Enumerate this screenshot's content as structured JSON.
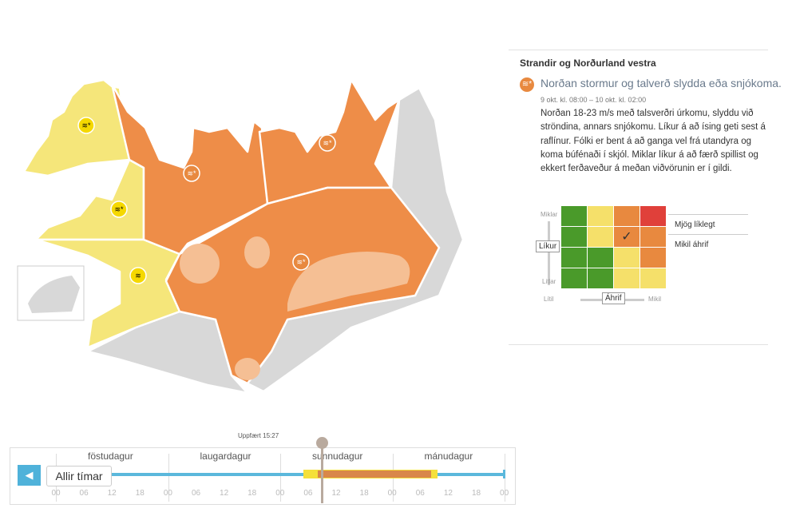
{
  "panel": {
    "region": "Strandir og Norðurland vestra",
    "icon": "wind-snow-icon",
    "headline": "Norðan stormur og talverð slydda eða snjókoma.",
    "time": "9 okt. kl. 08:00 – 10 okt. kl. 02:00",
    "text": "Norðan 18-23 m/s með talsverðri úrkomu, slyddu við ströndina, annars snjókomu. Líkur á að ísing geti sest á raflínur. Fólki er bent á að ganga vel frá utandyra og koma búfénaði í skjól. Miklar líkur á að færð spillist og ekkert ferðaveður á meðan viðvörunin er í gildi."
  },
  "matrix": {
    "likelihood_high": "Miklar",
    "likelihood_low": "Litlar",
    "likelihood_label": "Líkur",
    "impact_low": "Lítil",
    "impact_high": "Mikil",
    "impact_label": "Áhrif",
    "likelihood_value": "Mjög líklegt",
    "impact_value": "Mikil áhrif",
    "check": "✓",
    "colors": [
      [
        "#4a9a2a",
        "#f5e06a",
        "#e8893f",
        "#e0403a"
      ],
      [
        "#4a9a2a",
        "#f5e06a",
        "#e8893f",
        "#e8893f"
      ],
      [
        "#4a9a2a",
        "#4a9a2a",
        "#f5e06a",
        "#e8893f"
      ],
      [
        "#4a9a2a",
        "#4a9a2a",
        "#f5e06a",
        "#f5e06a"
      ]
    ],
    "selected": [
      1,
      2
    ]
  },
  "timeline": {
    "updated": "Uppfært 15:27",
    "all_times": "Allir tímar",
    "days": [
      "föstudagur",
      "laugardagur",
      "sunnudagur",
      "mánudagur"
    ],
    "hours": [
      "00",
      "06",
      "12",
      "18",
      "00",
      "06",
      "12",
      "18",
      "00",
      "06",
      "12",
      "18",
      "00",
      "06",
      "12",
      "18",
      "00"
    ],
    "accent": "#5bb8dc",
    "yellow_warning": "#f5e03a",
    "orange_warning": "#d9874a"
  },
  "map": {
    "colors": {
      "yellow": "#f5e67a",
      "orange": "#ee8d48",
      "glacier": "#f5bf94",
      "grey": "#d8d8d8"
    }
  }
}
